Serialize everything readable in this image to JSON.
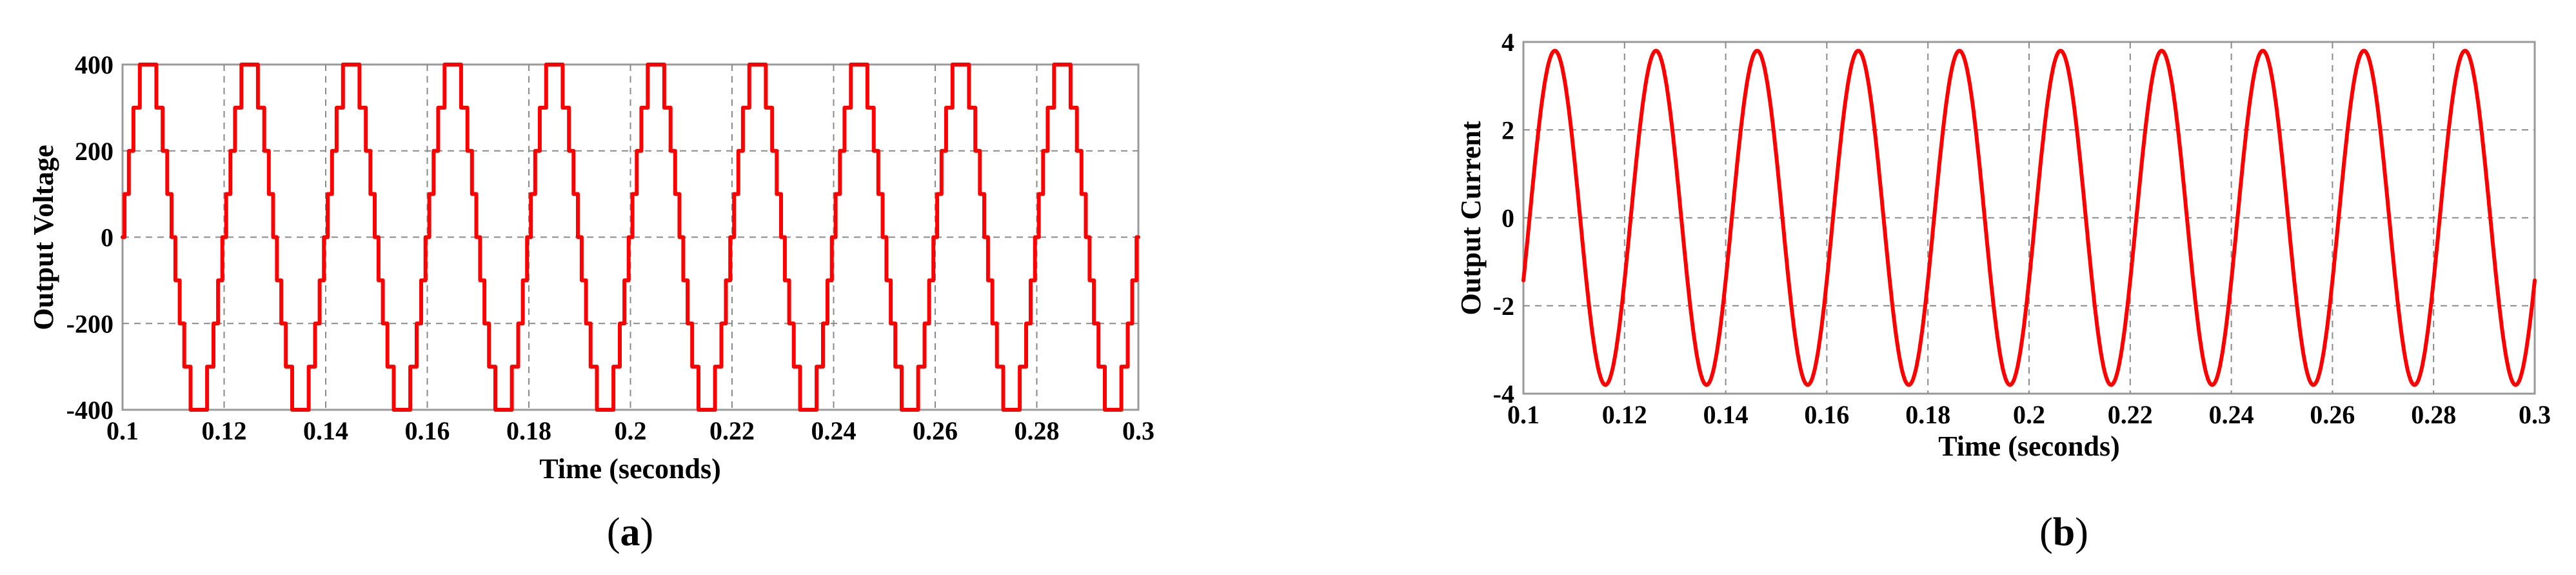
{
  "chart_data": [
    {
      "type": "line",
      "panel": "a",
      "caption_letter": "a",
      "xlabel": "Time (seconds)",
      "ylabel": "Output Voltage",
      "xlim": [
        0.1,
        0.3
      ],
      "ylim": [
        -400,
        400
      ],
      "xticks": [
        0.1,
        0.12,
        0.14,
        0.16,
        0.18,
        0.2,
        0.22,
        0.24,
        0.26,
        0.28,
        0.3
      ],
      "xtick_labels": [
        "0.1",
        "0.12",
        "0.14",
        "0.16",
        "0.18",
        "0.2",
        "0.22",
        "0.24",
        "0.26",
        "0.28",
        "0.3"
      ],
      "yticks": [
        -400,
        -200,
        0,
        200,
        400
      ],
      "ytick_labels": [
        "-400",
        "-200",
        "0",
        "200",
        "400"
      ],
      "grid": true,
      "frequency_hz": 50,
      "waveform": "stepped",
      "levels": [
        -400,
        -300,
        -200,
        -100,
        0,
        100,
        200,
        300,
        400
      ],
      "amplitude": 400,
      "color": "#ff0000",
      "series": [
        {
          "x": [
            0.1,
            0.3
          ],
          "y": [
            0,
            0
          ]
        }
      ]
    },
    {
      "type": "line",
      "panel": "b",
      "caption_letter": "b",
      "xlabel": "Time (seconds)",
      "ylabel": "Output Current",
      "xlim": [
        0.1,
        0.3
      ],
      "ylim": [
        -4,
        4
      ],
      "xticks": [
        0.1,
        0.12,
        0.14,
        0.16,
        0.18,
        0.2,
        0.22,
        0.24,
        0.26,
        0.28,
        0.3
      ],
      "xtick_labels": [
        "0.1",
        "0.12",
        "0.14",
        "0.16",
        "0.18",
        "0.2",
        "0.22",
        "0.24",
        "0.26",
        "0.28",
        "0.3"
      ],
      "yticks": [
        -4,
        -2,
        0,
        2,
        4
      ],
      "ytick_labels": [
        "-4",
        "-2",
        "0",
        "2",
        "4"
      ],
      "grid": true,
      "frequency_hz": 50,
      "waveform": "sine",
      "amplitude": 3.8,
      "phase_deg": -22,
      "color": "#ff0000",
      "series": [
        {
          "x": [
            0.1,
            0.3
          ],
          "y": [
            -1.4,
            -1.4
          ]
        }
      ]
    }
  ]
}
